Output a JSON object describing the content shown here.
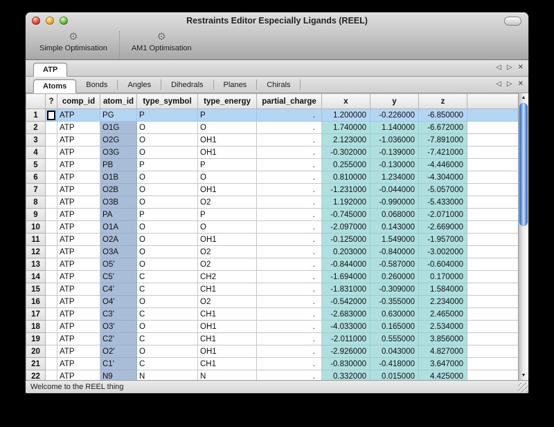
{
  "window": {
    "title": "Restraints Editor Especially Ligands (REEL)"
  },
  "icons": {
    "gear": "⚙",
    "scroll_left": "◁",
    "scroll_right": "▷",
    "close_tab": "✕",
    "up_arrow": "▲",
    "down_arrow": "▼"
  },
  "toolbar": {
    "items": [
      {
        "label": "Simple Optimisation",
        "icon": "gear-icon"
      },
      {
        "label": "AM1 Optimisation",
        "icon": "gear-icon"
      }
    ]
  },
  "doc_tabs": {
    "tabs": [
      "ATP"
    ],
    "selected": "ATP"
  },
  "section_tabs": {
    "tabs": [
      "Atoms",
      "Bonds",
      "Angles",
      "Dihedrals",
      "Planes",
      "Chirals"
    ],
    "selected": "Atoms"
  },
  "table": {
    "columns": [
      "?",
      "comp_id",
      "atom_id",
      "type_symbol",
      "type_energy",
      "partial_charge",
      "x",
      "y",
      "z"
    ],
    "selected_row": 1,
    "rows": [
      {
        "num": "1",
        "comp_id": "ATP",
        "atom_id": "PG",
        "type_symbol": "P",
        "type_energy": "P",
        "partial_charge": ".",
        "x": "1.200000",
        "y": "-0.226000",
        "z": "-6.850000"
      },
      {
        "num": "2",
        "comp_id": "ATP",
        "atom_id": "O1G",
        "type_symbol": "O",
        "type_energy": "O",
        "partial_charge": ".",
        "x": "1.740000",
        "y": "1.140000",
        "z": "-6.672000"
      },
      {
        "num": "3",
        "comp_id": "ATP",
        "atom_id": "O2G",
        "type_symbol": "O",
        "type_energy": "OH1",
        "partial_charge": ".",
        "x": "2.123000",
        "y": "-1.036000",
        "z": "-7.891000"
      },
      {
        "num": "4",
        "comp_id": "ATP",
        "atom_id": "O3G",
        "type_symbol": "O",
        "type_energy": "OH1",
        "partial_charge": ".",
        "x": "-0.302000",
        "y": "-0.139000",
        "z": "-7.421000"
      },
      {
        "num": "5",
        "comp_id": "ATP",
        "atom_id": "PB",
        "type_symbol": "P",
        "type_energy": "P",
        "partial_charge": ".",
        "x": "0.255000",
        "y": "-0.130000",
        "z": "-4.446000"
      },
      {
        "num": "6",
        "comp_id": "ATP",
        "atom_id": "O1B",
        "type_symbol": "O",
        "type_energy": "O",
        "partial_charge": ".",
        "x": "0.810000",
        "y": "1.234000",
        "z": "-4.304000"
      },
      {
        "num": "7",
        "comp_id": "ATP",
        "atom_id": "O2B",
        "type_symbol": "O",
        "type_energy": "OH1",
        "partial_charge": ".",
        "x": "-1.231000",
        "y": "-0.044000",
        "z": "-5.057000"
      },
      {
        "num": "8",
        "comp_id": "ATP",
        "atom_id": "O3B",
        "type_symbol": "O",
        "type_energy": "O2",
        "partial_charge": ".",
        "x": "1.192000",
        "y": "-0.990000",
        "z": "-5.433000"
      },
      {
        "num": "9",
        "comp_id": "ATP",
        "atom_id": "PA",
        "type_symbol": "P",
        "type_energy": "P",
        "partial_charge": ".",
        "x": "-0.745000",
        "y": "0.068000",
        "z": "-2.071000"
      },
      {
        "num": "10",
        "comp_id": "ATP",
        "atom_id": "O1A",
        "type_symbol": "O",
        "type_energy": "O",
        "partial_charge": ".",
        "x": "-2.097000",
        "y": "0.143000",
        "z": "-2.669000"
      },
      {
        "num": "11",
        "comp_id": "ATP",
        "atom_id": "O2A",
        "type_symbol": "O",
        "type_energy": "OH1",
        "partial_charge": ".",
        "x": "-0.125000",
        "y": "1.549000",
        "z": "-1.957000"
      },
      {
        "num": "12",
        "comp_id": "ATP",
        "atom_id": "O3A",
        "type_symbol": "O",
        "type_energy": "O2",
        "partial_charge": ".",
        "x": "0.203000",
        "y": "-0.840000",
        "z": "-3.002000"
      },
      {
        "num": "13",
        "comp_id": "ATP",
        "atom_id": "O5'",
        "type_symbol": "O",
        "type_energy": "O2",
        "partial_charge": ".",
        "x": "-0.844000",
        "y": "-0.587000",
        "z": "-0.604000"
      },
      {
        "num": "14",
        "comp_id": "ATP",
        "atom_id": "C5'",
        "type_symbol": "C",
        "type_energy": "CH2",
        "partial_charge": ".",
        "x": "-1.694000",
        "y": "0.260000",
        "z": "0.170000"
      },
      {
        "num": "15",
        "comp_id": "ATP",
        "atom_id": "C4'",
        "type_symbol": "C",
        "type_energy": "CH1",
        "partial_charge": ".",
        "x": "-1.831000",
        "y": "-0.309000",
        "z": "1.584000"
      },
      {
        "num": "16",
        "comp_id": "ATP",
        "atom_id": "O4'",
        "type_symbol": "O",
        "type_energy": "O2",
        "partial_charge": ".",
        "x": "-0.542000",
        "y": "-0.355000",
        "z": "2.234000"
      },
      {
        "num": "17",
        "comp_id": "ATP",
        "atom_id": "C3'",
        "type_symbol": "C",
        "type_energy": "CH1",
        "partial_charge": ".",
        "x": "-2.683000",
        "y": "0.630000",
        "z": "2.465000"
      },
      {
        "num": "18",
        "comp_id": "ATP",
        "atom_id": "O3'",
        "type_symbol": "O",
        "type_energy": "OH1",
        "partial_charge": ".",
        "x": "-4.033000",
        "y": "0.165000",
        "z": "2.534000"
      },
      {
        "num": "19",
        "comp_id": "ATP",
        "atom_id": "C2'",
        "type_symbol": "C",
        "type_energy": "CH1",
        "partial_charge": ".",
        "x": "-2.011000",
        "y": "0.555000",
        "z": "3.856000"
      },
      {
        "num": "20",
        "comp_id": "ATP",
        "atom_id": "O2'",
        "type_symbol": "O",
        "type_energy": "OH1",
        "partial_charge": ".",
        "x": "-2.926000",
        "y": "0.043000",
        "z": "4.827000"
      },
      {
        "num": "21",
        "comp_id": "ATP",
        "atom_id": "C1'",
        "type_symbol": "C",
        "type_energy": "CH1",
        "partial_charge": ".",
        "x": "-0.830000",
        "y": "-0.418000",
        "z": "3.647000"
      },
      {
        "num": "22",
        "comp_id": "ATP",
        "atom_id": "N9",
        "type_symbol": "N",
        "type_energy": "N",
        "partial_charge": ".",
        "x": "0.332000",
        "y": "0.015000",
        "z": "4.425000"
      }
    ]
  },
  "status_bar": {
    "message": "Welcome to the REEL thing"
  },
  "colors": {
    "row_selection": "#b5d5f5",
    "atom_id_column": "#a9bdd9",
    "coord_columns": "#b0dfe0",
    "scrollbar_thumb": "#4a86e8"
  }
}
